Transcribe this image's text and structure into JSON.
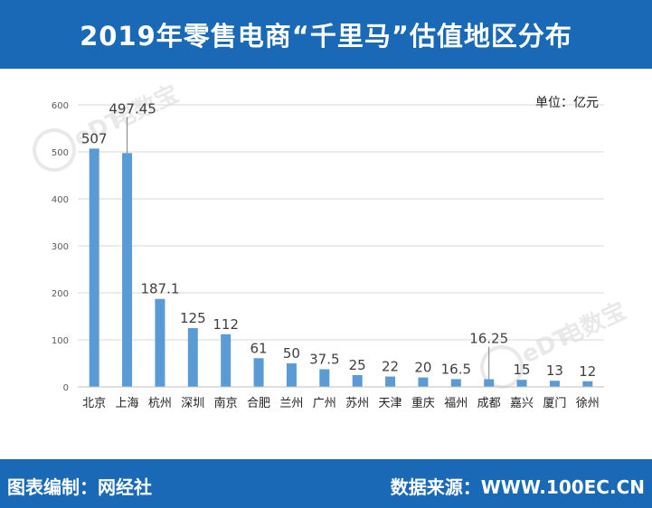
{
  "header": {
    "title": "2019年零售电商“千里马”估值地区分布"
  },
  "footer": {
    "left": "图表编制：网经社",
    "right": "数据来源：WWW.100EC.CN"
  },
  "colors": {
    "brand_blue": "#1a69b6",
    "bar": "#5b9bd5",
    "grid": "#d9d9d9",
    "label": "#404040"
  },
  "watermark": {
    "text": "电数宝",
    "sub": "eDT"
  },
  "chart_data": {
    "type": "bar",
    "unit_label": "单位：亿元",
    "categories": [
      "北京",
      "上海",
      "杭州",
      "深圳",
      "南京",
      "合肥",
      "兰州",
      "广州",
      "苏州",
      "天津",
      "重庆",
      "福州",
      "成都",
      "嘉兴",
      "厦门",
      "徐州"
    ],
    "values": [
      507,
      497.45,
      187.1,
      125,
      112,
      61,
      50,
      37.5,
      25,
      22,
      20,
      16.5,
      16.25,
      15,
      13,
      12
    ],
    "value_labels": [
      "507",
      "497.45",
      "187.1",
      "125",
      "112",
      "61",
      "50",
      "37.5",
      "25",
      "22",
      "20",
      "16.5",
      "16.25",
      "15",
      "13",
      "12"
    ],
    "ylim": [
      0,
      600
    ],
    "yticks": [
      0,
      100,
      200,
      300,
      400,
      500,
      600
    ],
    "grid": true,
    "legend": "none",
    "title": "",
    "xlabel": "",
    "ylabel": ""
  }
}
